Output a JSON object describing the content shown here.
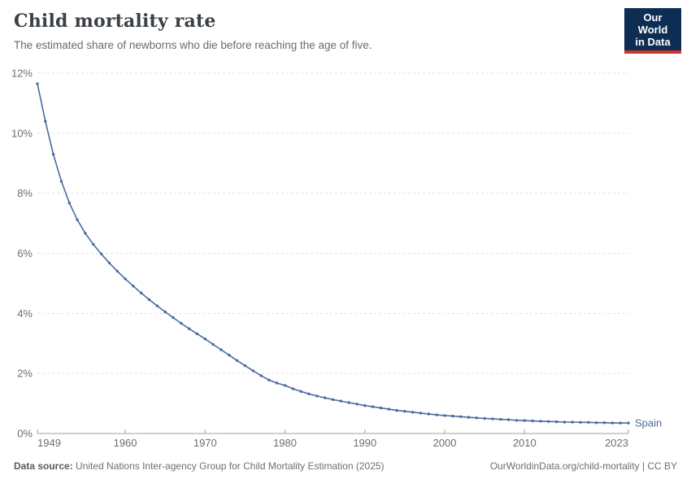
{
  "header": {
    "title": "Child mortality rate",
    "subtitle": "The estimated share of newborns who die before reaching the age of five.",
    "logo": {
      "line1": "Our World",
      "line2": "in Data"
    }
  },
  "chart_data": {
    "type": "line",
    "title": "Child mortality rate",
    "xlabel": "",
    "ylabel": "",
    "xlim": [
      1949,
      2023
    ],
    "ylim": [
      0,
      12
    ],
    "xticks": [
      1949,
      1960,
      1970,
      1980,
      1990,
      2000,
      2010,
      2023
    ],
    "yticks": [
      0,
      2,
      4,
      6,
      8,
      10,
      12
    ],
    "ytick_suffix": "%",
    "grid": true,
    "legend_position": "end-of-line",
    "series": [
      {
        "name": "Spain",
        "color": "#4C6A9C",
        "x_start": 1949,
        "values": [
          11.65,
          10.4,
          9.3,
          8.4,
          7.68,
          7.12,
          6.67,
          6.3,
          5.98,
          5.68,
          5.41,
          5.15,
          4.91,
          4.68,
          4.46,
          4.25,
          4.05,
          3.86,
          3.67,
          3.49,
          3.32,
          3.15,
          2.97,
          2.79,
          2.61,
          2.43,
          2.26,
          2.09,
          1.93,
          1.78,
          1.68,
          1.6,
          1.49,
          1.4,
          1.32,
          1.25,
          1.19,
          1.13,
          1.08,
          1.03,
          0.98,
          0.93,
          0.89,
          0.85,
          0.81,
          0.77,
          0.74,
          0.71,
          0.68,
          0.65,
          0.62,
          0.6,
          0.58,
          0.56,
          0.54,
          0.52,
          0.5,
          0.49,
          0.47,
          0.46,
          0.44,
          0.43,
          0.42,
          0.41,
          0.4,
          0.39,
          0.38,
          0.38,
          0.37,
          0.37,
          0.36,
          0.36,
          0.35,
          0.35,
          0.35
        ]
      }
    ]
  },
  "footer": {
    "source_label": "Data source:",
    "source_text": " United Nations Inter-agency Group for Child Mortality Estimation (2025)",
    "attribution": "OurWorldinData.org/child-mortality | CC BY"
  },
  "colors": {
    "series_blue": "#4C6A9C",
    "grid": "#e0e0e0",
    "axis": "#a1a1a1",
    "tick_label": "#6e6e6e",
    "logo_bg": "#0d2d52",
    "logo_stripe": "#cd3731"
  }
}
